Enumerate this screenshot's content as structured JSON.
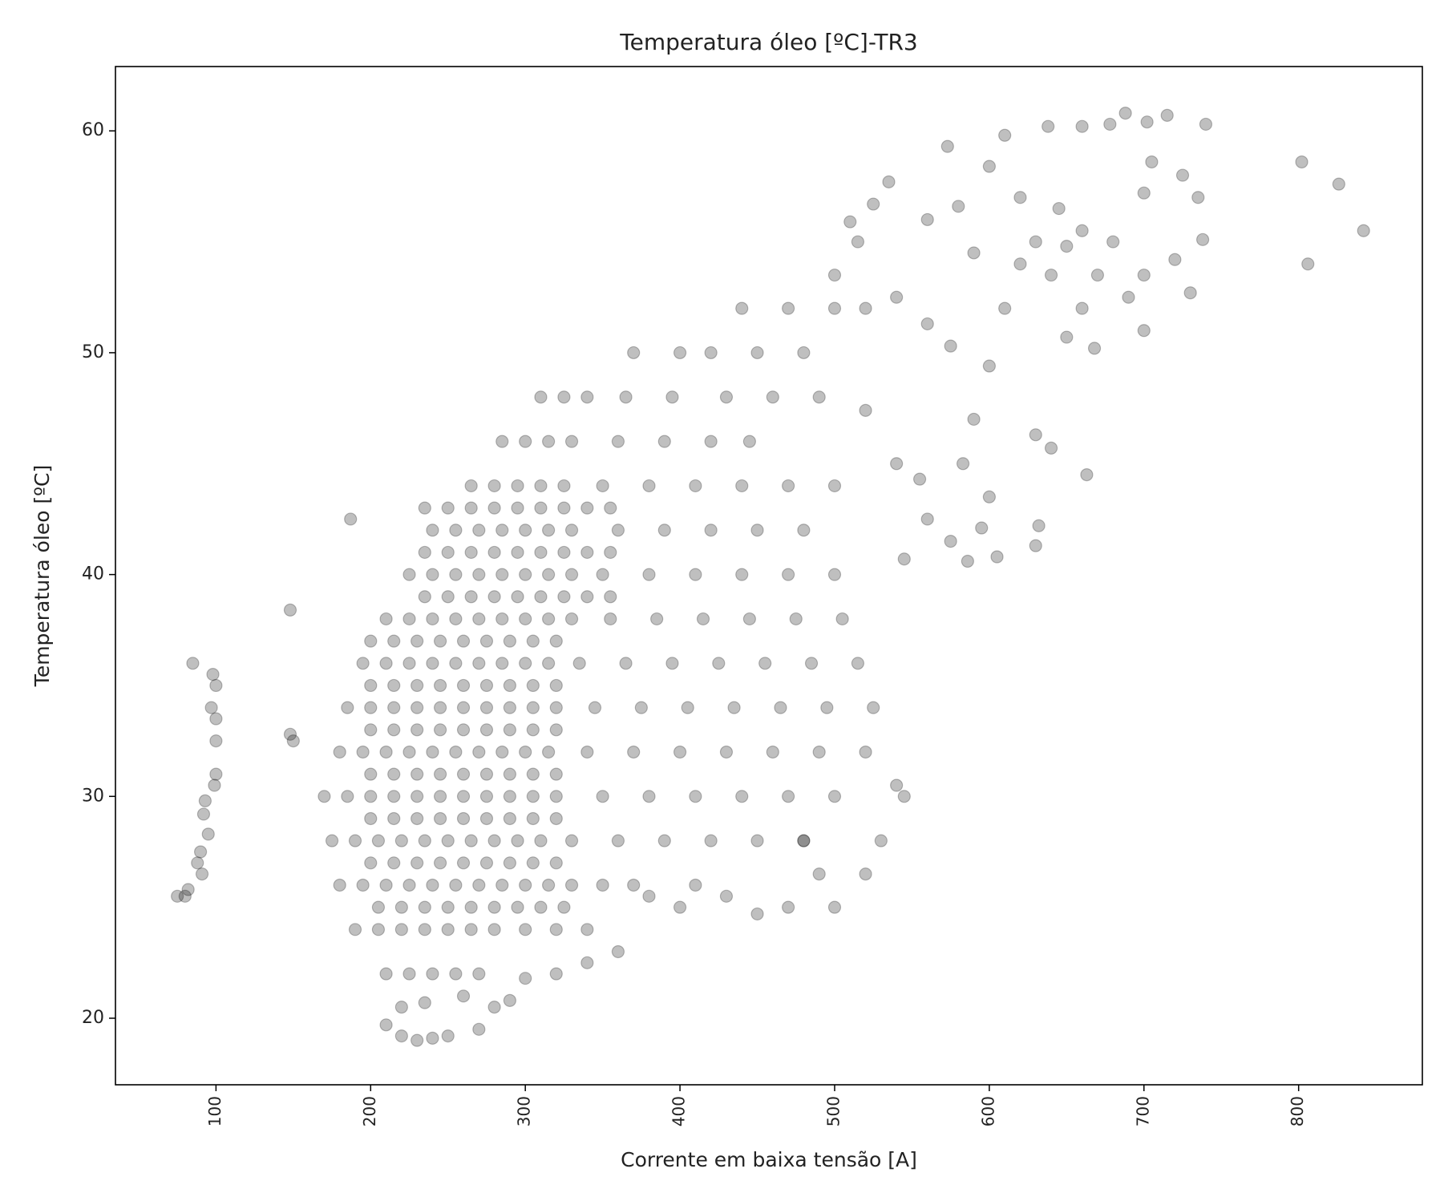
{
  "chart_data": {
    "type": "scatter",
    "title": "Temperatura óleo [ºC]-TR3",
    "x_label": "Corrente em baixa tensão [A]",
    "y_label": "Temperatura óleo [ºC]",
    "color": "#000000",
    "alpha": 0.25,
    "xlim": [
      35,
      880
    ],
    "ylim": [
      17,
      62.9
    ],
    "xticks": [
      100,
      200,
      300,
      400,
      500,
      600,
      700,
      800
    ],
    "yticks": [
      20,
      30,
      40,
      50,
      60
    ],
    "grid": false,
    "x": [
      75,
      80,
      82,
      85,
      88,
      90,
      91,
      92,
      93,
      95,
      97,
      98,
      99,
      100,
      100,
      100,
      100,
      148,
      148,
      150,
      187,
      573,
      610,
      638,
      660,
      678,
      688,
      702,
      715,
      740,
      705,
      725,
      802,
      826,
      842,
      806,
      738,
      735,
      720,
      700,
      690,
      668,
      660,
      650,
      640,
      630,
      620,
      610,
      600,
      590,
      583,
      586,
      605,
      630,
      632,
      640,
      630,
      663,
      600,
      595,
      575,
      560,
      545,
      555,
      540,
      520,
      525,
      535,
      510,
      515,
      500,
      520,
      540,
      560,
      575,
      590,
      600,
      620,
      645,
      660,
      680,
      700,
      730,
      560,
      580,
      700,
      670,
      650,
      540,
      545,
      530,
      520,
      500,
      490,
      480,
      470,
      450,
      430,
      410,
      400,
      380,
      360,
      340,
      320,
      300,
      280,
      270,
      250,
      240,
      230,
      220,
      210,
      220,
      235,
      260,
      290,
      210,
      225,
      240,
      255,
      270,
      190,
      205,
      220,
      235,
      250,
      265,
      280,
      300,
      320,
      340,
      180,
      195,
      210,
      225,
      240,
      255,
      270,
      285,
      300,
      315,
      330,
      350,
      370,
      175,
      190,
      205,
      220,
      235,
      250,
      265,
      280,
      295,
      310,
      330,
      360,
      390,
      420,
      450,
      480,
      170,
      185,
      200,
      215,
      230,
      245,
      260,
      275,
      290,
      305,
      320,
      350,
      380,
      410,
      440,
      470,
      500,
      180,
      195,
      210,
      225,
      240,
      255,
      270,
      285,
      300,
      315,
      340,
      370,
      400,
      430,
      460,
      490,
      520,
      185,
      200,
      215,
      230,
      245,
      260,
      275,
      290,
      305,
      320,
      345,
      375,
      405,
      435,
      465,
      495,
      525,
      195,
      210,
      225,
      240,
      255,
      270,
      285,
      300,
      315,
      335,
      365,
      395,
      425,
      455,
      485,
      515,
      210,
      225,
      240,
      255,
      270,
      285,
      300,
      315,
      330,
      355,
      385,
      415,
      445,
      475,
      505,
      225,
      240,
      255,
      270,
      285,
      300,
      315,
      330,
      350,
      380,
      410,
      440,
      470,
      500,
      240,
      255,
      270,
      285,
      300,
      315,
      330,
      360,
      390,
      420,
      450,
      480,
      265,
      280,
      295,
      310,
      325,
      350,
      380,
      410,
      440,
      470,
      500,
      285,
      300,
      315,
      330,
      360,
      390,
      420,
      445,
      310,
      325,
      340,
      365,
      395,
      430,
      460,
      490,
      370,
      400,
      420,
      450,
      480,
      440,
      470,
      500,
      205,
      220,
      235,
      250,
      265,
      280,
      295,
      310,
      325,
      200,
      215,
      230,
      245,
      260,
      275,
      290,
      305,
      320,
      200,
      215,
      230,
      245,
      260,
      275,
      290,
      305,
      320,
      200,
      215,
      230,
      245,
      260,
      275,
      290,
      305,
      320,
      200,
      215,
      230,
      245,
      260,
      275,
      290,
      305,
      320,
      200,
      215,
      230,
      245,
      260,
      275,
      290,
      305,
      320,
      200,
      215,
      230,
      245,
      260,
      275,
      290,
      305,
      320,
      235,
      250,
      265,
      280,
      295,
      310,
      325,
      340,
      355,
      235,
      250,
      265,
      280,
      295,
      310,
      325,
      340,
      355,
      235,
      250,
      265,
      280,
      295,
      310,
      325,
      340,
      355
    ],
    "values": [
      25.5,
      25.5,
      25.8,
      36,
      27,
      27.5,
      26.5,
      29.2,
      29.8,
      28.3,
      34,
      35.5,
      30.5,
      31,
      32.5,
      33.5,
      35,
      38.4,
      32.8,
      32.5,
      42.5,
      59.3,
      59.8,
      60.2,
      60.2,
      60.3,
      60.8,
      60.4,
      60.7,
      60.3,
      58.6,
      58,
      58.6,
      57.6,
      55.5,
      54,
      55.1,
      57,
      54.2,
      53.5,
      52.5,
      50.2,
      52,
      50.7,
      53.5,
      55,
      54,
      52,
      49.4,
      47,
      45,
      40.6,
      40.8,
      41.3,
      42.2,
      45.7,
      46.3,
      44.5,
      43.5,
      42.1,
      41.5,
      42.5,
      40.7,
      44.3,
      45,
      47.4,
      56.7,
      57.7,
      55.9,
      55,
      53.5,
      52,
      52.5,
      51.3,
      50.3,
      54.5,
      58.4,
      57,
      56.5,
      55.5,
      55,
      57.2,
      52.7,
      56,
      56.6,
      51,
      53.5,
      54.8,
      30.5,
      30,
      28,
      26.5,
      25,
      26.5,
      28,
      25,
      24.7,
      25.5,
      26,
      25,
      25.5,
      23,
      22.5,
      22,
      21.8,
      20.5,
      19.5,
      19.2,
      19.1,
      19,
      19.2,
      19.7,
      20.5,
      20.7,
      21,
      20.8,
      22,
      22,
      22,
      22,
      22,
      24,
      24,
      24,
      24,
      24,
      24,
      24,
      24,
      24,
      24,
      26,
      26,
      26,
      26,
      26,
      26,
      26,
      26,
      26,
      26,
      26,
      26,
      26,
      28,
      28,
      28,
      28,
      28,
      28,
      28,
      28,
      28,
      28,
      28,
      28,
      28,
      28,
      28,
      28,
      30,
      30,
      30,
      30,
      30,
      30,
      30,
      30,
      30,
      30,
      30,
      30,
      30,
      30,
      30,
      30,
      30,
      32,
      32,
      32,
      32,
      32,
      32,
      32,
      32,
      32,
      32,
      32,
      32,
      32,
      32,
      32,
      32,
      32,
      34,
      34,
      34,
      34,
      34,
      34,
      34,
      34,
      34,
      34,
      34,
      34,
      34,
      34,
      34,
      34,
      34,
      36,
      36,
      36,
      36,
      36,
      36,
      36,
      36,
      36,
      36,
      36,
      36,
      36,
      36,
      36,
      36,
      38,
      38,
      38,
      38,
      38,
      38,
      38,
      38,
      38,
      38,
      38,
      38,
      38,
      38,
      38,
      40,
      40,
      40,
      40,
      40,
      40,
      40,
      40,
      40,
      40,
      40,
      40,
      40,
      40,
      42,
      42,
      42,
      42,
      42,
      42,
      42,
      42,
      42,
      42,
      42,
      42,
      44,
      44,
      44,
      44,
      44,
      44,
      44,
      44,
      44,
      44,
      44,
      46,
      46,
      46,
      46,
      46,
      46,
      46,
      46,
      48,
      48,
      48,
      48,
      48,
      48,
      48,
      48,
      50,
      50,
      50,
      50,
      50,
      52,
      52,
      52,
      25,
      25,
      25,
      25,
      25,
      25,
      25,
      25,
      25,
      27,
      27,
      27,
      27,
      27,
      27,
      27,
      27,
      27,
      29,
      29,
      29,
      29,
      29,
      29,
      29,
      29,
      29,
      31,
      31,
      31,
      31,
      31,
      31,
      31,
      31,
      31,
      33,
      33,
      33,
      33,
      33,
      33,
      33,
      33,
      33,
      35,
      35,
      35,
      35,
      35,
      35,
      35,
      35,
      35,
      37,
      37,
      37,
      37,
      37,
      37,
      37,
      37,
      37,
      39,
      39,
      39,
      39,
      39,
      39,
      39,
      39,
      39,
      41,
      41,
      41,
      41,
      41,
      41,
      41,
      41,
      41,
      43,
      43,
      43,
      43,
      43,
      43,
      43,
      43,
      43
    ]
  }
}
